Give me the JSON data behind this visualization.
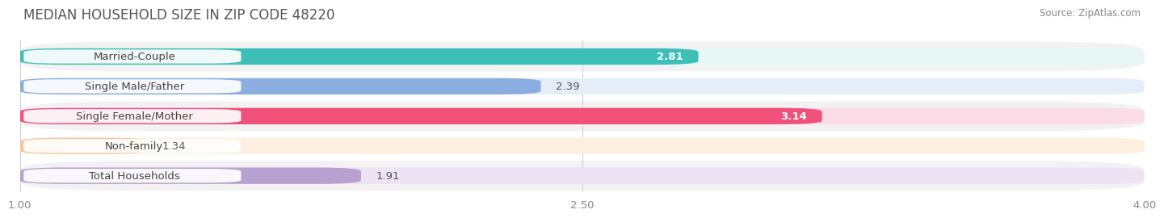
{
  "title": "MEDIAN HOUSEHOLD SIZE IN ZIP CODE 48220",
  "source": "Source: ZipAtlas.com",
  "categories": [
    "Married-Couple",
    "Single Male/Father",
    "Single Female/Mother",
    "Non-family",
    "Total Households"
  ],
  "values": [
    2.81,
    2.39,
    3.14,
    1.34,
    1.91
  ],
  "bar_colors": [
    "#3DBFB8",
    "#8AAEE0",
    "#F0507A",
    "#F5C897",
    "#B8A0D0"
  ],
  "bar_bg_colors": [
    "#E8F7F6",
    "#E5EDF8",
    "#FCDCE6",
    "#FDF0E0",
    "#EDE3F5"
  ],
  "value_inside": [
    true,
    false,
    true,
    false,
    false
  ],
  "xlim_start": 1.0,
  "xlim_end": 4.0,
  "xticks": [
    1.0,
    2.5,
    4.0
  ],
  "xtick_labels": [
    "1.00",
    "2.50",
    "4.00"
  ],
  "label_fontsize": 9.5,
  "value_fontsize": 9.5,
  "title_fontsize": 12,
  "source_fontsize": 8.5,
  "background_color": "#FFFFFF",
  "row_bg_colors": [
    "#F0F0F0",
    "#FAFAFA",
    "#F0F0F0",
    "#FAFAFA",
    "#F0F0F0"
  ]
}
